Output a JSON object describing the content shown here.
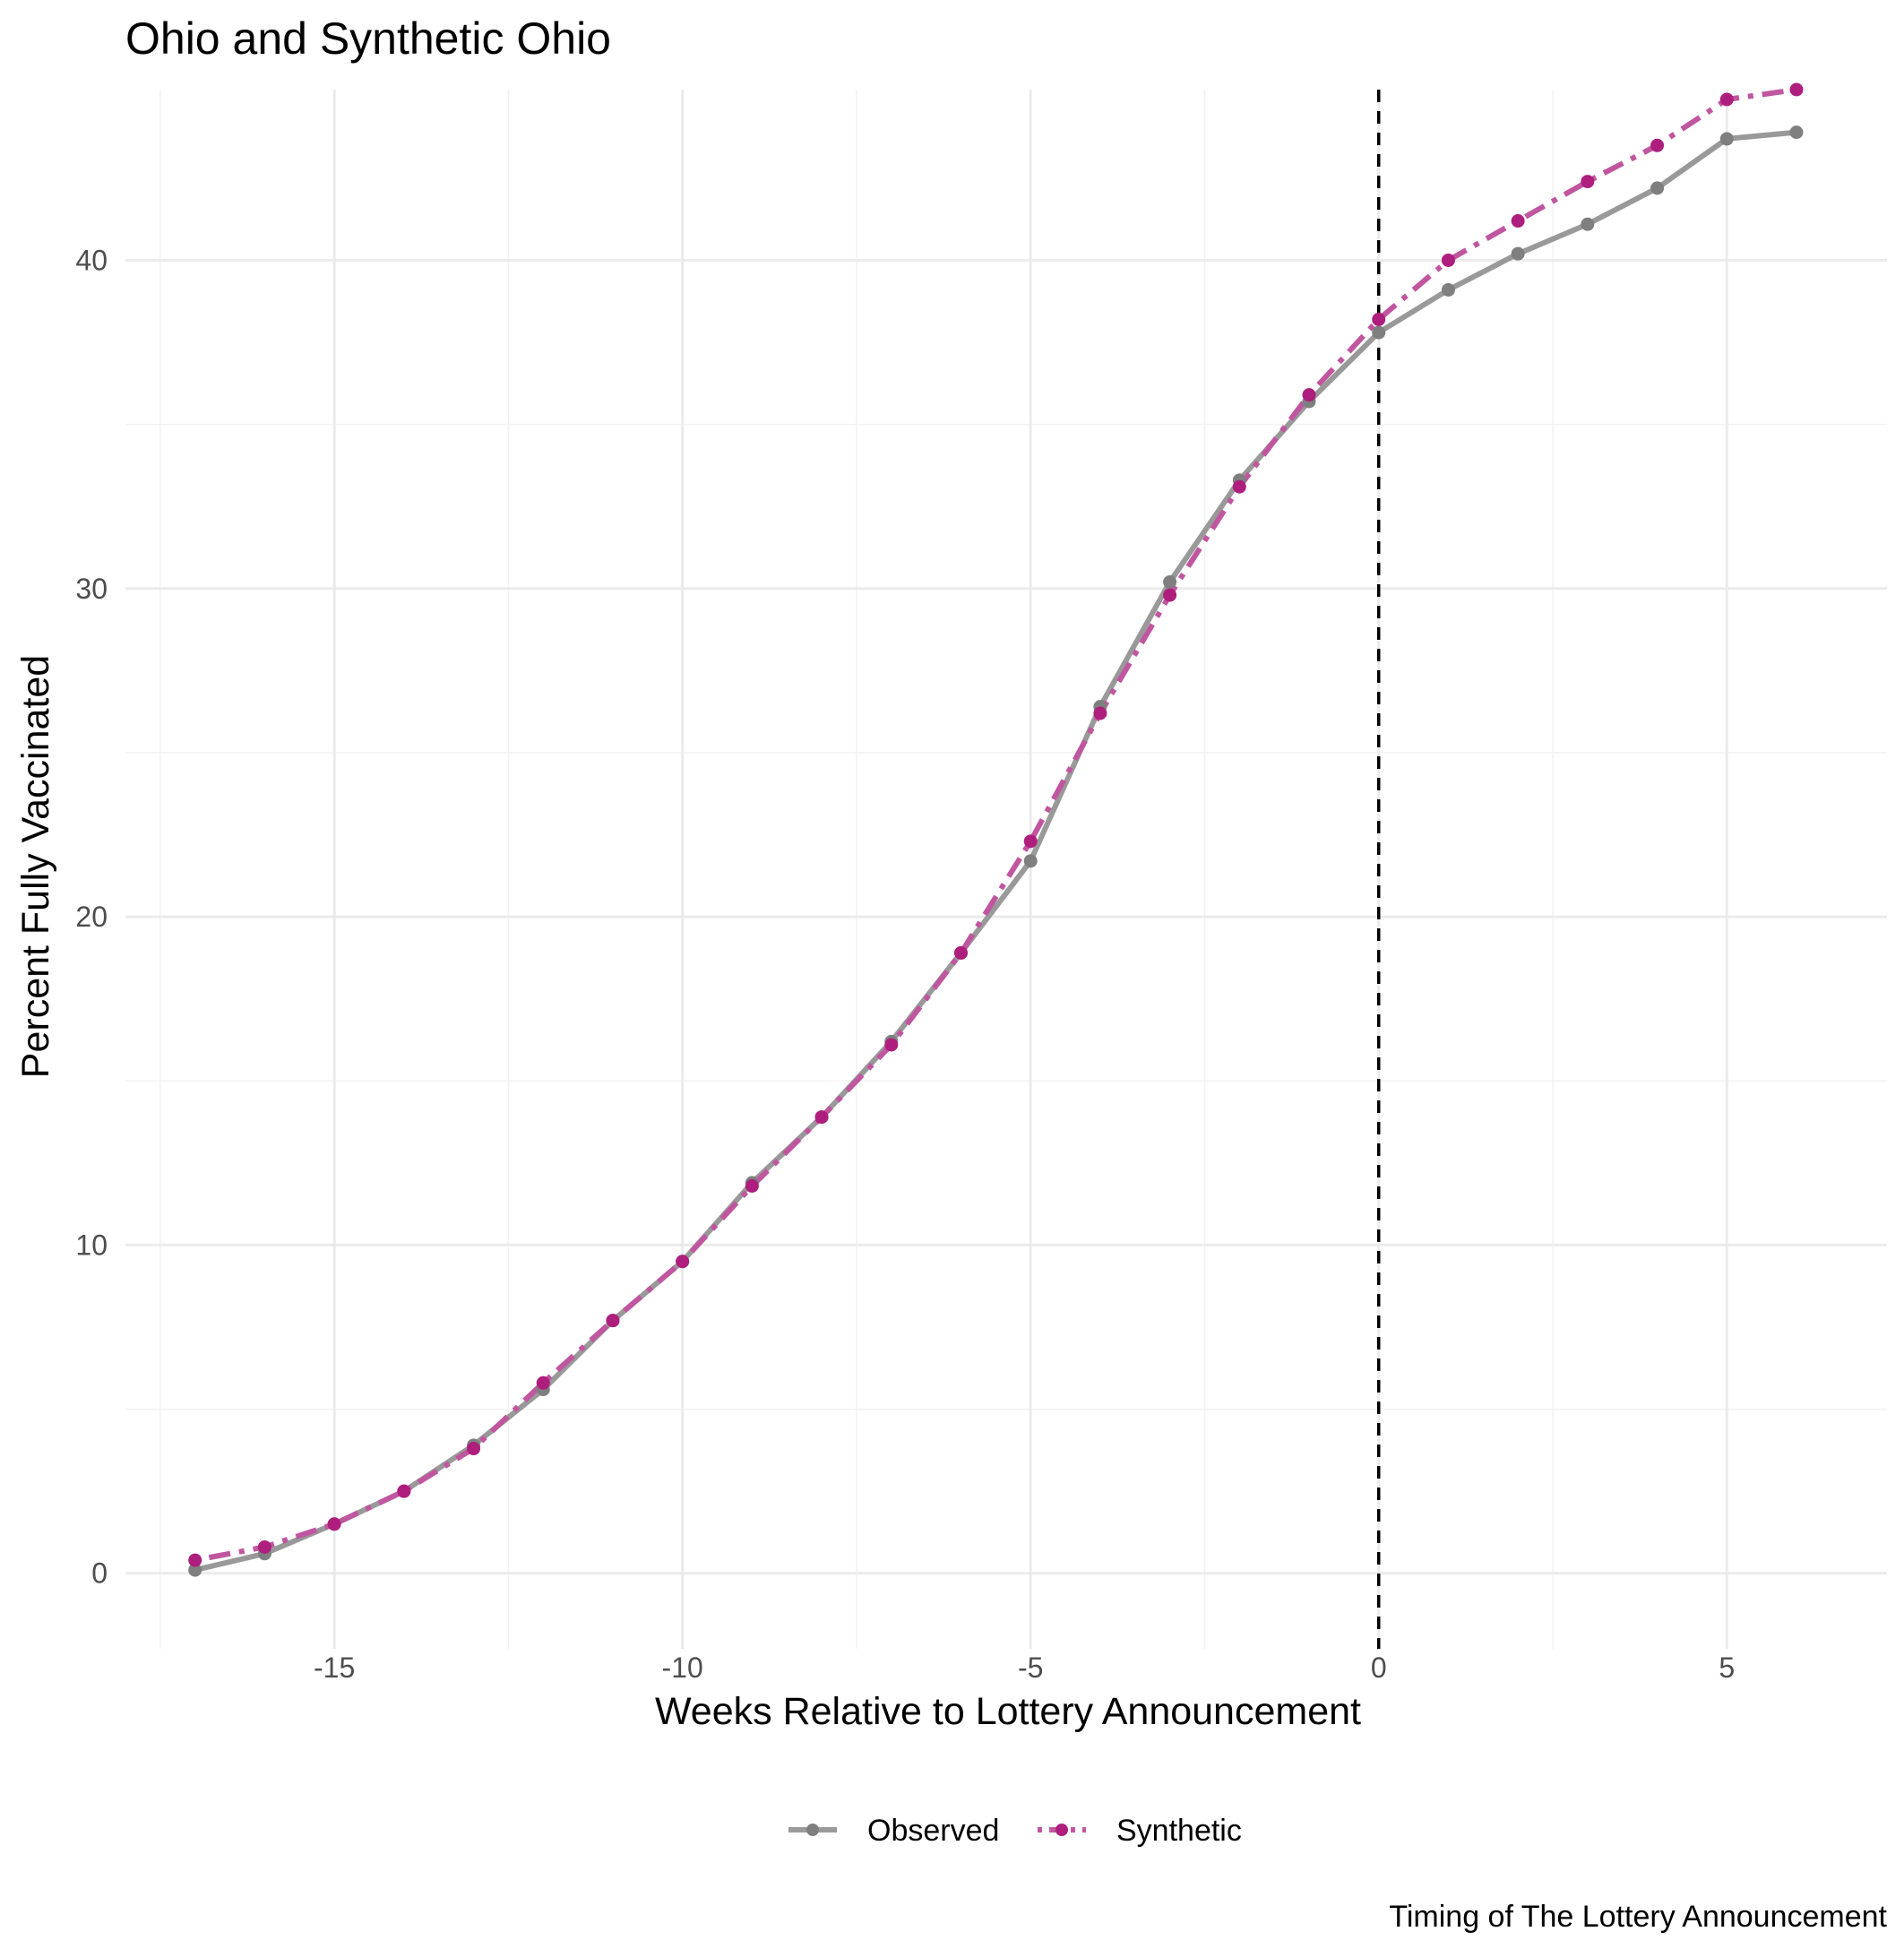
{
  "chart_data": {
    "type": "line",
    "title": "Ohio and Synthetic Ohio",
    "xlabel": "Weeks Relative to Lottery Announcement",
    "ylabel": "Percent Fully Vaccinated",
    "caption": "Timing of The Lottery Announcement",
    "xlim": [
      -18.0,
      7.3
    ],
    "ylim": [
      -2.3,
      45.2
    ],
    "x_ticks": [
      -15,
      -10,
      -5,
      0,
      5
    ],
    "x_tick_labels": [
      "-15",
      "-10",
      "-5",
      "0",
      "5"
    ],
    "y_ticks": [
      0,
      10,
      20,
      30,
      40
    ],
    "y_tick_labels": [
      "0",
      "10",
      "20",
      "30",
      "40"
    ],
    "x_minor_ticks": [
      -17.5,
      -12.5,
      -7.5,
      -2.5,
      2.5
    ],
    "y_minor_ticks": [
      5,
      15,
      25,
      35
    ],
    "grid": true,
    "vline": {
      "x": 0,
      "style": "dashed",
      "color": "#000000"
    },
    "x": [
      -17,
      -16,
      -15,
      -14,
      -13,
      -12,
      -11,
      -10,
      -9,
      -8,
      -7,
      -6,
      -5,
      -4,
      -3,
      -2,
      -1,
      0,
      1,
      2,
      3,
      4,
      5,
      6
    ],
    "series": [
      {
        "name": "Observed",
        "color": "#999999",
        "point_color": "#7f7f7f",
        "dash": "solid",
        "values": [
          0.1,
          0.6,
          1.5,
          2.5,
          3.9,
          5.6,
          7.7,
          9.5,
          11.9,
          13.9,
          16.2,
          18.9,
          21.7,
          26.4,
          30.2,
          33.3,
          35.7,
          37.8,
          39.1,
          40.2,
          41.1,
          42.2,
          43.7,
          43.9
        ]
      },
      {
        "name": "Synthetic",
        "color": "#c0569f",
        "point_color": "#ae1e7d",
        "dash": "dotdash",
        "values": [
          0.4,
          0.8,
          1.5,
          2.5,
          3.8,
          5.8,
          7.7,
          9.5,
          11.8,
          13.9,
          16.1,
          18.9,
          22.3,
          26.2,
          29.8,
          33.1,
          35.9,
          38.2,
          40.0,
          41.2,
          42.4,
          43.5,
          44.9,
          45.2
        ]
      }
    ],
    "legend_position": "bottom"
  }
}
